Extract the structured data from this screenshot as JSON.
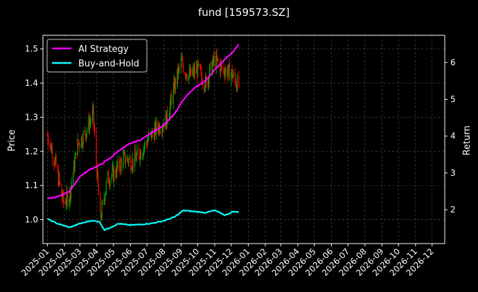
{
  "chart_data": {
    "type": "line",
    "title": "fund [159573.SZ]",
    "ylabel_left": "Price",
    "ylabel_right": "Return",
    "xlabel": "",
    "xlim": [
      "2024-12-24",
      "2026-12-24"
    ],
    "ylim_left": [
      0.93,
      1.54
    ],
    "ylim_right": [
      1.08,
      6.74
    ],
    "yticks_left": [
      1.0,
      1.1,
      1.2,
      1.3,
      1.4,
      1.5
    ],
    "yticks_right": [
      2,
      3,
      4,
      5,
      6
    ],
    "xticks": [
      "2025-01",
      "2025-02",
      "2025-03",
      "2025-04",
      "2025-05",
      "2025-06",
      "2025-07",
      "2025-08",
      "2025-09",
      "2025-10",
      "2025-11",
      "2025-12",
      "2026-01",
      "2026-02",
      "2026-03",
      "2026-04",
      "2026-05",
      "2026-06",
      "2026-07",
      "2026-08",
      "2026-09",
      "2026-10",
      "2026-11",
      "2026-12"
    ],
    "grid": true,
    "legend_position": "top-left",
    "colors": {
      "background": "#000000",
      "ai_strategy": "#ff00ff",
      "buy_and_hold": "#00ffff",
      "candle_up": "#00aa00",
      "candle_down": "#ff0000",
      "grid": "#555555"
    },
    "series": [
      {
        "name": "AI Strategy",
        "axis": "right",
        "x": [
          "2025-01-01",
          "2025-01-20",
          "2025-02-10",
          "2025-03-01",
          "2025-03-20",
          "2025-04-05",
          "2025-04-25",
          "2025-05-10",
          "2025-06-01",
          "2025-06-20",
          "2025-07-10",
          "2025-08-01",
          "2025-08-20",
          "2025-09-05",
          "2025-09-25",
          "2025-10-15",
          "2025-11-01",
          "2025-11-20",
          "2025-12-05",
          "2025-12-15"
        ],
        "values": [
          2.3,
          2.35,
          2.5,
          2.9,
          3.1,
          3.2,
          3.4,
          3.6,
          3.8,
          3.9,
          4.1,
          4.3,
          4.6,
          5.0,
          5.3,
          5.5,
          5.8,
          6.1,
          6.3,
          6.5
        ]
      },
      {
        "name": "Buy-and-Hold",
        "axis": "right",
        "x": [
          "2025-01-01",
          "2025-01-20",
          "2025-02-10",
          "2025-03-01",
          "2025-03-20",
          "2025-04-05",
          "2025-04-15",
          "2025-05-10",
          "2025-06-01",
          "2025-06-20",
          "2025-07-10",
          "2025-08-01",
          "2025-08-20",
          "2025-09-05",
          "2025-09-25",
          "2025-10-15",
          "2025-11-01",
          "2025-11-20",
          "2025-12-05",
          "2025-12-15"
        ],
        "values": [
          1.75,
          1.62,
          1.52,
          1.62,
          1.7,
          1.68,
          1.45,
          1.62,
          1.58,
          1.6,
          1.63,
          1.7,
          1.8,
          1.98,
          1.95,
          1.92,
          1.98,
          1.85,
          1.95,
          1.93
        ]
      },
      {
        "name": "Price",
        "axis": "left",
        "type": "candlestick",
        "x": [
          "2025-01-01",
          "2025-01-15",
          "2025-01-30",
          "2025-02-10",
          "2025-02-25",
          "2025-03-10",
          "2025-03-25",
          "2025-04-07",
          "2025-04-20",
          "2025-05-05",
          "2025-05-20",
          "2025-06-05",
          "2025-06-20",
          "2025-07-05",
          "2025-07-20",
          "2025-08-05",
          "2025-08-20",
          "2025-09-01",
          "2025-09-15",
          "2025-10-01",
          "2025-10-15",
          "2025-11-01",
          "2025-11-15",
          "2025-12-01",
          "2025-12-15"
        ],
        "values": [
          1.25,
          1.17,
          1.05,
          1.07,
          1.22,
          1.25,
          1.31,
          1.0,
          1.12,
          1.14,
          1.18,
          1.17,
          1.2,
          1.24,
          1.27,
          1.29,
          1.39,
          1.46,
          1.42,
          1.44,
          1.4,
          1.47,
          1.44,
          1.43,
          1.39
        ]
      }
    ]
  }
}
